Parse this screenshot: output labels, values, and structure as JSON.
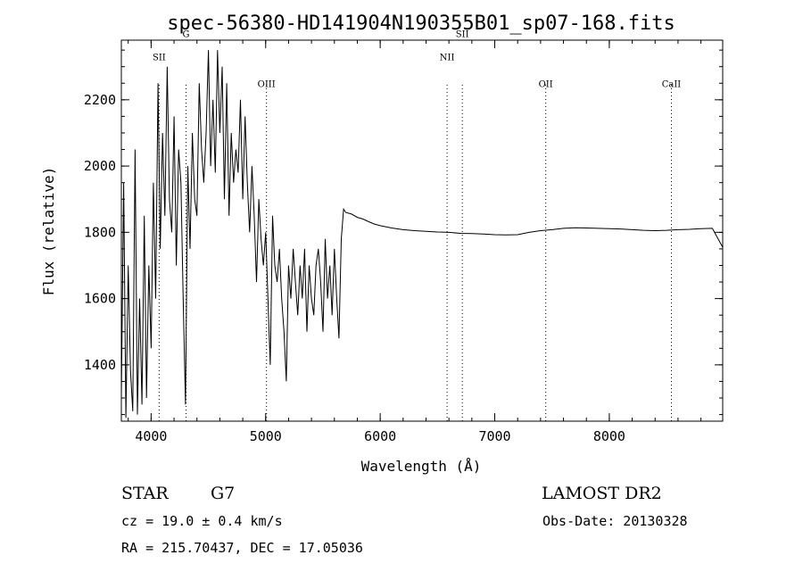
{
  "chart_data": {
    "type": "line",
    "title": "spec-56380-HD141904N190355B01_sp07-168.fits",
    "xlabel": "Wavelength (Å)",
    "ylabel": "Flux (relative)",
    "xlim": [
      3740,
      8990
    ],
    "ylim": [
      1230,
      2380
    ],
    "xticks": [
      4000,
      5000,
      6000,
      7000,
      8000
    ],
    "yticks": [
      1400,
      1600,
      1800,
      2000,
      2200
    ],
    "grid": false,
    "legend": "none",
    "emission_lines": [
      {
        "name": "SII",
        "x": 4070,
        "label_y": 2330
      },
      {
        "name": "G",
        "x": 4305,
        "label_y": 2400
      },
      {
        "name": "OIII",
        "x": 5007,
        "label_y": 2250
      },
      {
        "name": "NII",
        "x": 6584,
        "label_y": 2330
      },
      {
        "name": "SII",
        "x": 6717,
        "label_y": 2400
      },
      {
        "name": "OII",
        "x": 7445,
        "label_y": 2250
      },
      {
        "name": "CaII",
        "x": 8542,
        "label_y": 2250
      }
    ],
    "series": [
      {
        "x": [
          3740,
          3760,
          3780,
          3800,
          3820,
          3840,
          3860,
          3880,
          3900,
          3920,
          3940,
          3960,
          3980,
          4000,
          4020,
          4040,
          4060,
          4080,
          4100,
          4120,
          4140,
          4160,
          4180,
          4200,
          4220,
          4240,
          4260,
          4280,
          4300,
          4320,
          4340,
          4360,
          4380,
          4400,
          4420,
          4440,
          4460,
          4480,
          4500,
          4520,
          4540,
          4560,
          4580,
          4600,
          4620,
          4640,
          4660,
          4680,
          4700,
          4720,
          4740,
          4760,
          4780,
          4800,
          4820,
          4840,
          4860,
          4880,
          4900,
          4920,
          4940,
          4960,
          4980,
          5000,
          5020,
          5040,
          5060,
          5080,
          5100,
          5120,
          5140,
          5160,
          5180,
          5200,
          5220,
          5240,
          5260,
          5280,
          5300,
          5320,
          5340,
          5360,
          5380,
          5400,
          5420,
          5440,
          5460,
          5480,
          5500,
          5520,
          5540,
          5560,
          5580,
          5600,
          5620,
          5640,
          5660,
          5680,
          5700,
          5750,
          5800,
          5850,
          5900,
          5950,
          6000,
          6100,
          6200,
          6300,
          6400,
          6500,
          6600,
          6700,
          6800,
          6900,
          7000,
          7100,
          7200,
          7300,
          7400,
          7500,
          7600,
          7700,
          7800,
          7900,
          8000,
          8100,
          8200,
          8300,
          8400,
          8500,
          8600,
          8700,
          8800,
          8900,
          8990
        ],
        "y": [
          1300,
          1950,
          1240,
          1700,
          1380,
          1260,
          2050,
          1250,
          1600,
          1280,
          1850,
          1300,
          1700,
          1450,
          1950,
          1600,
          2250,
          1750,
          2100,
          1850,
          2300,
          1900,
          1800,
          2150,
          1700,
          2050,
          1950,
          1600,
          1280,
          2000,
          1750,
          2100,
          1900,
          1850,
          2250,
          2050,
          1950,
          2100,
          2350,
          2000,
          2200,
          1980,
          2350,
          2100,
          2300,
          1900,
          2250,
          1850,
          2100,
          1950,
          2050,
          1980,
          2200,
          1900,
          2150,
          1950,
          1800,
          2000,
          1850,
          1650,
          1900,
          1780,
          1700,
          1800,
          1600,
          1400,
          1850,
          1700,
          1650,
          1750,
          1600,
          1500,
          1350,
          1700,
          1600,
          1750,
          1650,
          1550,
          1700,
          1600,
          1750,
          1500,
          1700,
          1600,
          1550,
          1700,
          1750,
          1650,
          1500,
          1780,
          1600,
          1700,
          1550,
          1750,
          1600,
          1480,
          1780,
          1870,
          1860,
          1855,
          1845,
          1840,
          1832,
          1825,
          1820,
          1813,
          1808,
          1805,
          1803,
          1801,
          1800,
          1797,
          1796,
          1795,
          1793,
          1792,
          1793,
          1800,
          1805,
          1808,
          1812,
          1814,
          1813,
          1812,
          1811,
          1810,
          1808,
          1806,
          1805,
          1806,
          1808,
          1809,
          1811,
          1812,
          1755
        ]
      }
    ]
  },
  "info": {
    "object_type": "STAR",
    "subclass": "G7",
    "survey": "LAMOST DR2",
    "cz": "cz = 19.0 ± 0.4 km/s",
    "obs_date": "Obs-Date: 20130328",
    "coords": "RA = 215.70437, DEC =  17.05036"
  }
}
